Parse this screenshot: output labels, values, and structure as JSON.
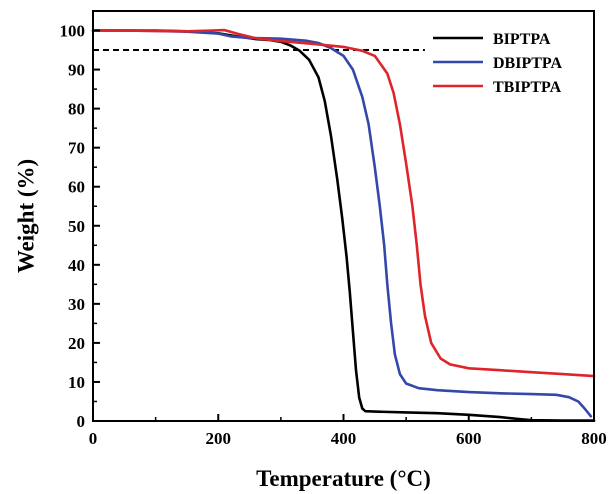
{
  "chart_data": {
    "type": "line",
    "xlabel": "Temperature (°C)",
    "ylabel": "Weight (%)",
    "xlim": [
      0,
      800
    ],
    "ylim": [
      0,
      105
    ],
    "xticks": [
      0,
      200,
      400,
      600,
      800
    ],
    "yticks": [
      0,
      10,
      20,
      30,
      40,
      50,
      60,
      70,
      80,
      90,
      100
    ],
    "grid": false,
    "legend_position": "top-right",
    "reference_line": {
      "y": 95,
      "x_start": 0,
      "x_end": 530,
      "style": "dashed",
      "color": "#000000"
    },
    "series": [
      {
        "name": "BIPTPA",
        "color": "#000000",
        "points": [
          [
            0,
            100
          ],
          [
            50,
            100
          ],
          [
            100,
            100
          ],
          [
            150,
            99.8
          ],
          [
            200,
            99.3
          ],
          [
            230,
            98.5
          ],
          [
            260,
            97.8
          ],
          [
            280,
            97.6
          ],
          [
            300,
            97.1
          ],
          [
            315,
            96.2
          ],
          [
            330,
            94.8
          ],
          [
            345,
            92.5
          ],
          [
            360,
            88
          ],
          [
            370,
            82
          ],
          [
            380,
            73
          ],
          [
            390,
            62
          ],
          [
            398,
            52
          ],
          [
            405,
            42
          ],
          [
            410,
            33
          ],
          [
            415,
            23
          ],
          [
            420,
            13
          ],
          [
            425,
            6
          ],
          [
            430,
            3.2
          ],
          [
            435,
            2.5
          ],
          [
            450,
            2.4
          ],
          [
            500,
            2.2
          ],
          [
            550,
            2
          ],
          [
            600,
            1.6
          ],
          [
            650,
            1
          ],
          [
            680,
            0.5
          ],
          [
            700,
            0.2
          ],
          [
            750,
            0.1
          ],
          [
            800,
            0.1
          ]
        ]
      },
      {
        "name": "DBIPTPA",
        "color": "#3348a8",
        "points": [
          [
            0,
            100
          ],
          [
            50,
            100
          ],
          [
            100,
            99.9
          ],
          [
            150,
            99.7
          ],
          [
            200,
            99.2
          ],
          [
            220,
            98.5
          ],
          [
            250,
            98.1
          ],
          [
            300,
            97.9
          ],
          [
            340,
            97.4
          ],
          [
            360,
            96.8
          ],
          [
            380,
            95.5
          ],
          [
            400,
            93.5
          ],
          [
            415,
            90
          ],
          [
            430,
            83
          ],
          [
            440,
            76
          ],
          [
            450,
            65
          ],
          [
            458,
            55
          ],
          [
            465,
            45
          ],
          [
            470,
            35
          ],
          [
            476,
            25
          ],
          [
            482,
            17
          ],
          [
            490,
            12
          ],
          [
            500,
            9.6
          ],
          [
            520,
            8.4
          ],
          [
            550,
            7.9
          ],
          [
            600,
            7.4
          ],
          [
            650,
            7.1
          ],
          [
            700,
            6.9
          ],
          [
            740,
            6.7
          ],
          [
            760,
            6.1
          ],
          [
            775,
            5
          ],
          [
            785,
            3.2
          ],
          [
            792,
            1.8
          ],
          [
            795,
            1.2
          ]
        ]
      },
      {
        "name": "TBIPTPA",
        "color": "#e0242b",
        "points": [
          [
            0,
            100
          ],
          [
            50,
            100
          ],
          [
            100,
            99.9
          ],
          [
            150,
            99.8
          ],
          [
            190,
            100
          ],
          [
            210,
            100.1
          ],
          [
            230,
            99.2
          ],
          [
            260,
            98
          ],
          [
            300,
            97.3
          ],
          [
            350,
            96.6
          ],
          [
            400,
            95.8
          ],
          [
            430,
            94.8
          ],
          [
            450,
            93.5
          ],
          [
            470,
            89
          ],
          [
            480,
            84
          ],
          [
            490,
            76
          ],
          [
            500,
            66
          ],
          [
            510,
            55
          ],
          [
            517,
            45
          ],
          [
            523,
            35
          ],
          [
            530,
            27
          ],
          [
            540,
            20
          ],
          [
            555,
            16
          ],
          [
            570,
            14.5
          ],
          [
            600,
            13.5
          ],
          [
            650,
            13
          ],
          [
            700,
            12.5
          ],
          [
            750,
            12
          ],
          [
            800,
            11.5
          ]
        ]
      }
    ]
  }
}
